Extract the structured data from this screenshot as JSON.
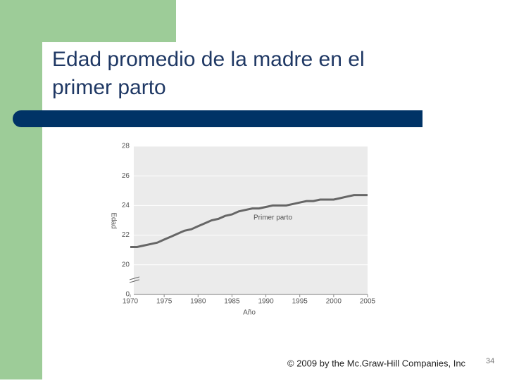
{
  "slide": {
    "title_lines": [
      "Edad promedio de la madre en el",
      "primer parto"
    ],
    "footer": "© 2009 by the Mc.Graw-Hill Companies, Inc",
    "page_number": "34"
  },
  "chart_data": {
    "type": "line",
    "xlabel": "Año",
    "ylabel": "Edad",
    "annotation": "Primer parto",
    "x": [
      1970,
      1971,
      1972,
      1973,
      1974,
      1975,
      1976,
      1977,
      1978,
      1979,
      1980,
      1981,
      1982,
      1983,
      1984,
      1985,
      1986,
      1987,
      1988,
      1989,
      1990,
      1991,
      1992,
      1993,
      1994,
      1995,
      1996,
      1997,
      1998,
      1999,
      2000,
      2001,
      2002,
      2003,
      2004,
      2005
    ],
    "series": [
      {
        "name": "Primer parto",
        "color": "#666666",
        "values": [
          21.2,
          21.2,
          21.3,
          21.4,
          21.5,
          21.7,
          21.9,
          22.1,
          22.3,
          22.4,
          22.6,
          22.8,
          23.0,
          23.1,
          23.3,
          23.4,
          23.6,
          23.7,
          23.8,
          23.8,
          23.9,
          24.0,
          24.0,
          24.0,
          24.1,
          24.2,
          24.3,
          24.3,
          24.4,
          24.4,
          24.4,
          24.5,
          24.6,
          24.7,
          24.7,
          24.7
        ]
      }
    ],
    "xlim": [
      1970,
      2005
    ],
    "xticks": [
      1970,
      1975,
      1980,
      1985,
      1990,
      1995,
      2000,
      2005
    ],
    "ylim": [
      0,
      28
    ],
    "yticks": [
      0,
      20,
      22,
      24,
      26,
      28
    ],
    "y_break": [
      0,
      20
    ],
    "grid": true
  }
}
